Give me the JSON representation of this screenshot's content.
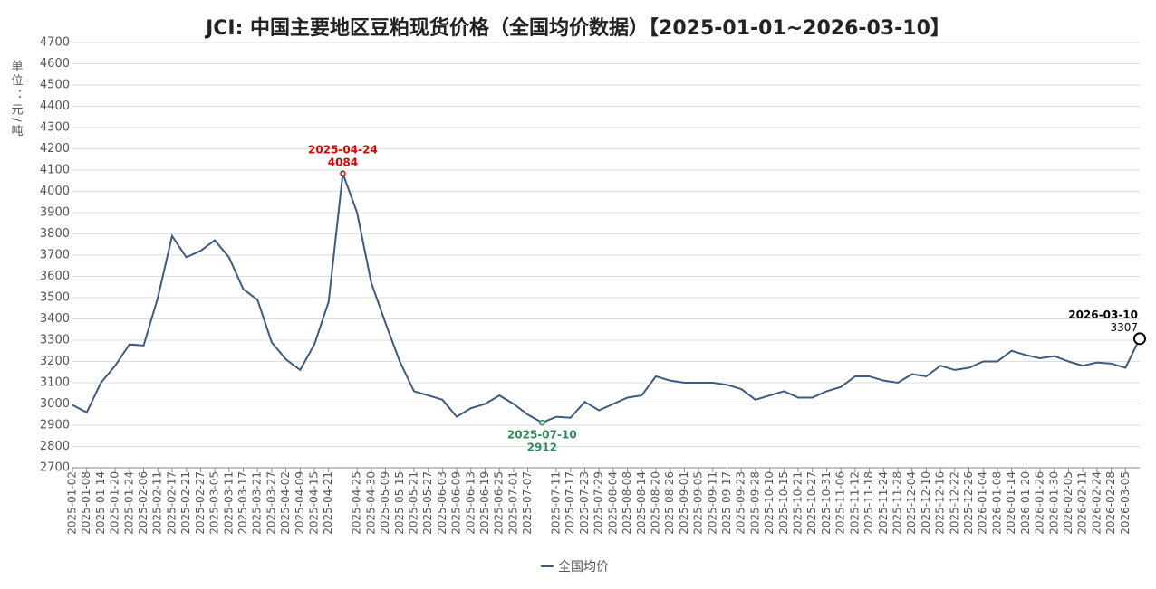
{
  "chart_data": {
    "type": "line",
    "title": "JCI: 中国主要地区豆粕现货价格（全国均价数据）【2025-01-01~2026-03-10】",
    "y_label": "单位：元/吨",
    "categories": [
      "2025-01-02",
      "2025-01-08",
      "2025-01-14",
      "2025-01-20",
      "2025-01-24",
      "2025-02-06",
      "2025-02-11",
      "2025-02-17",
      "2025-02-21",
      "2025-02-27",
      "2025-03-05",
      "2025-03-11",
      "2025-03-17",
      "2025-03-21",
      "2025-03-27",
      "2025-04-02",
      "2025-04-09",
      "2025-04-15",
      "2025-04-21",
      null,
      "2025-04-25",
      "2025-04-30",
      "2025-05-09",
      "2025-05-15",
      "2025-05-21",
      "2025-05-27",
      "2025-06-03",
      "2025-06-09",
      "2025-06-13",
      "2025-06-19",
      "2025-06-25",
      "2025-07-01",
      "2025-07-07",
      null,
      "2025-07-11",
      "2025-07-17",
      "2025-07-23",
      "2025-07-29",
      "2025-08-04",
      "2025-08-08",
      "2025-08-14",
      "2025-08-20",
      "2025-08-26",
      "2025-09-01",
      "2025-09-05",
      "2025-09-11",
      "2025-09-17",
      "2025-09-23",
      "2025-09-28",
      "2025-10-10",
      "2025-10-15",
      "2025-10-21",
      "2025-10-27",
      "2025-10-31",
      "2025-11-06",
      "2025-11-12",
      "2025-11-18",
      "2025-11-24",
      "2025-11-28",
      "2025-12-04",
      "2025-12-10",
      "2025-12-16",
      "2025-12-22",
      "2025-12-26",
      "2026-01-04",
      "2026-01-08",
      "2026-01-14",
      "2026-01-20",
      "2026-01-26",
      "2026-01-30",
      "2026-02-05",
      "2026-02-11",
      "2026-02-24",
      "2026-02-28",
      "2026-03-05",
      null
    ],
    "series": [
      {
        "name": "全国均价",
        "color": "#3b5b82",
        "values": [
          2995,
          2960,
          3100,
          3180,
          3280,
          3275,
          3500,
          3790,
          3690,
          3720,
          3770,
          3690,
          3540,
          3490,
          3290,
          3210,
          3160,
          3280,
          3480,
          4084,
          3900,
          3570,
          3380,
          3200,
          3060,
          3040,
          3020,
          2940,
          2980,
          3000,
          3040,
          3000,
          2950,
          2912,
          2940,
          2935,
          3010,
          2970,
          3000,
          3030,
          3040,
          3130,
          3110,
          3100,
          3100,
          3100,
          3090,
          3070,
          3020,
          3040,
          3060,
          3030,
          3030,
          3060,
          3080,
          3130,
          3130,
          3110,
          3100,
          3140,
          3130,
          3180,
          3160,
          3170,
          3200,
          3200,
          3250,
          3230,
          3215,
          3225,
          3200,
          3180,
          3195,
          3190,
          3170,
          3307
        ]
      }
    ],
    "annotations": [
      {
        "date": "2025-04-24",
        "color": "#e00000"
      },
      {
        "date": "2025-07-10",
        "color": "#2e8b57"
      },
      {
        "date": "2026-03-10",
        "color": "#000000"
      }
    ],
    "ylim": [
      2700,
      4700
    ],
    "yticks": [
      2700,
      2800,
      2900,
      3000,
      3100,
      3200,
      3300,
      3400,
      3500,
      3600,
      3700,
      3800,
      3900,
      4000,
      4100,
      4200,
      4300,
      4400,
      4500,
      4600,
      4700
    ],
    "grid": true
  }
}
